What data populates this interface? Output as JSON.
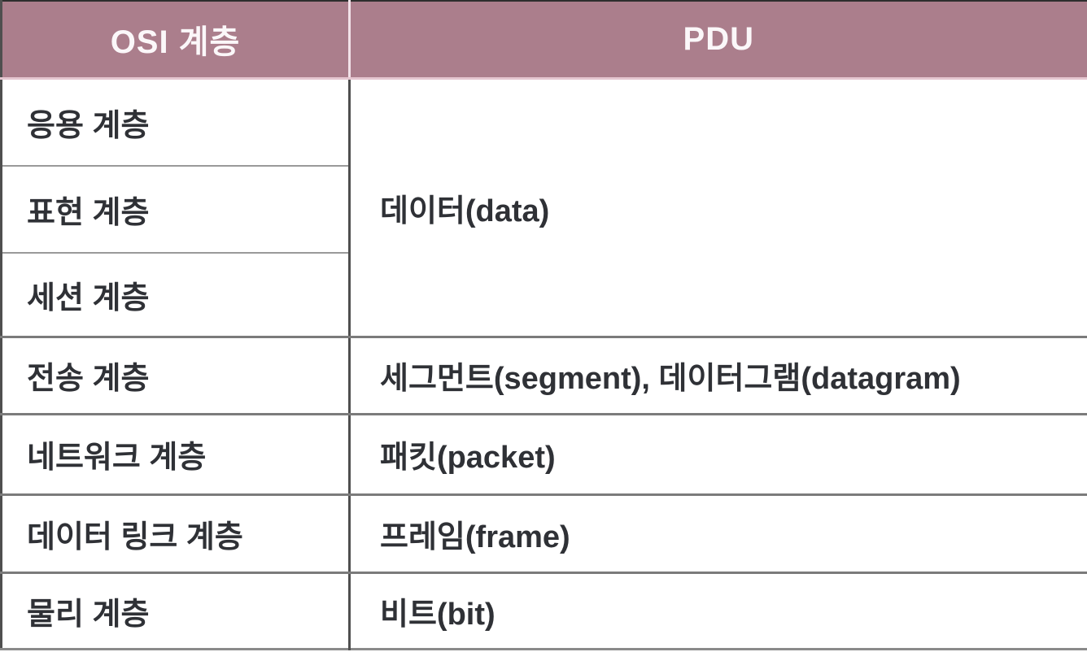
{
  "table": {
    "header": {
      "osi": "OSI 계층",
      "pdu": "PDU"
    },
    "rows": [
      {
        "layer": "응용 계층"
      },
      {
        "layer": "표현 계층"
      },
      {
        "layer": "세션 계층"
      },
      {
        "layer": "전송 계층",
        "pdu": "세그먼트(segment), 데이터그램(datagram)"
      },
      {
        "layer": "네트워크 계층",
        "pdu": "패킷(packet)"
      },
      {
        "layer": "데이터 링크 계층",
        "pdu": "프레임(frame)"
      },
      {
        "layer": "물리 계층",
        "pdu": "비트(bit)"
      }
    ],
    "merged_pdu": {
      "value": "데이터(data)",
      "row_span": 3
    }
  },
  "colors": {
    "header_bg": "#ab7e8c",
    "header_text": "#fbf7f9",
    "header_divider": "#f2e2e8",
    "header_bottom_edge": "#e5c6d0",
    "body_text": "#2f3136",
    "grid_line_thick": "#7b7b7b",
    "grid_line_thin": "#9a9a9a",
    "column_divider": "#4f4f4f",
    "outer_border_top": "#2e2e2e",
    "outer_border_bottom": "#8a8a8a"
  }
}
